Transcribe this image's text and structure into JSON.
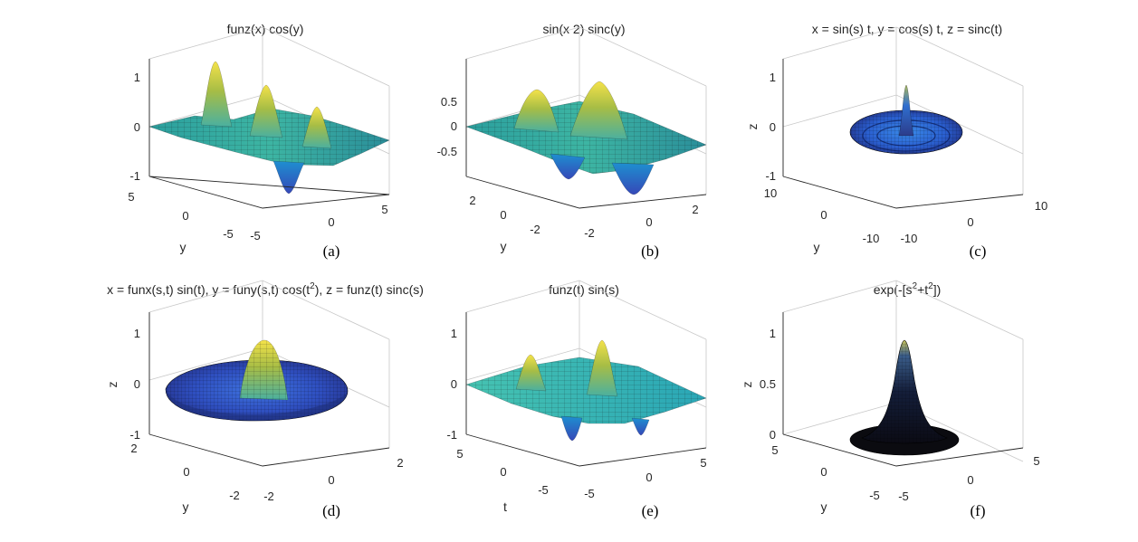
{
  "chart_data": [
    {
      "type": "surface",
      "title": "funz(x) cos(y)",
      "panel_label": "(a)",
      "xlabel": "",
      "ylabel": "y",
      "zlabel": "",
      "xlim": [
        -6,
        6
      ],
      "ylim": [
        -6,
        6
      ],
      "zlim": [
        -1,
        1.2
      ],
      "xticks": [
        -5,
        0,
        5
      ],
      "yticks": [
        -5,
        0,
        5
      ],
      "zticks": [
        -1,
        0,
        1
      ],
      "colormap": "parula",
      "peak_z": 1.2,
      "trough_z": -0.85
    },
    {
      "type": "surface",
      "title": "sin(x 2) sinc(y)",
      "panel_label": "(b)",
      "xlabel": "",
      "ylabel": "y",
      "zlabel": "",
      "xlim": [
        -3,
        3
      ],
      "ylim": [
        -3,
        3
      ],
      "zlim": [
        -0.8,
        0.9
      ],
      "xticks": [
        -2,
        0,
        2
      ],
      "yticks": [
        -2,
        0,
        2
      ],
      "zticks": [
        -0.5,
        0,
        0.5
      ],
      "colormap": "parula",
      "peak_z": 0.85,
      "trough_z": -0.8
    },
    {
      "type": "surface",
      "title": "x = sin(s) t, y = cos(s) t, z = sinc(t)",
      "panel_label": "(c)",
      "xlabel": "",
      "ylabel": "y",
      "zlabel": "z",
      "xlim": [
        -10,
        10
      ],
      "ylim": [
        -10,
        10
      ],
      "zlim": [
        -1,
        1
      ],
      "xticks": [
        -10,
        0,
        10
      ],
      "yticks": [
        -10,
        0,
        10
      ],
      "zticks": [
        -1,
        0,
        1
      ],
      "colormap": "parula",
      "peak_z": 1.0
    },
    {
      "type": "surface",
      "title": "x = funx(s,t) sin(t), y = funy(s,t) cos(t^2), z = funz(t) sinc(s)",
      "title_parts": [
        "x = funx(s,t) sin(t), y = funy(s,t) cos(t",
        "2",
        "), z = funz(t) sinc(s)"
      ],
      "panel_label": "(d)",
      "xlabel": "",
      "ylabel": "y",
      "zlabel": "z",
      "xlim": [
        -2.5,
        2.5
      ],
      "ylim": [
        -2.5,
        2.5
      ],
      "zlim": [
        -1,
        1
      ],
      "xticks": [
        -2,
        0,
        2
      ],
      "yticks": [
        -2,
        0,
        2
      ],
      "zticks": [
        -1,
        0,
        1
      ],
      "colormap": "parula",
      "peak_z": 0.8
    },
    {
      "type": "surface",
      "title": "funz(t) sin(s)",
      "panel_label": "(e)",
      "xlabel": "",
      "ylabel": "t",
      "zlabel": "",
      "xlim": [
        -6,
        6
      ],
      "ylim": [
        -6,
        6
      ],
      "zlim": [
        -1,
        1
      ],
      "xticks": [
        -5,
        0,
        5
      ],
      "yticks": [
        -5,
        0,
        5
      ],
      "zticks": [
        -1,
        0,
        1
      ],
      "colormap": "parula",
      "peak_z": 0.85,
      "trough_z": -0.7
    },
    {
      "type": "surface",
      "title": "exp(-[s^2+t^2])",
      "title_parts": [
        "exp(-[s",
        "2",
        "+t",
        "2",
        "])"
      ],
      "panel_label": "(f)",
      "xlabel": "",
      "ylabel": "y",
      "zlabel": "z",
      "xlim": [
        -6,
        6
      ],
      "ylim": [
        -6,
        6
      ],
      "zlim": [
        0,
        1
      ],
      "xticks": [
        -5,
        0,
        5
      ],
      "yticks": [
        -5,
        0,
        5
      ],
      "zticks": [
        0,
        0.5,
        1
      ],
      "colormap": "parula",
      "peak_z": 1.0
    }
  ]
}
